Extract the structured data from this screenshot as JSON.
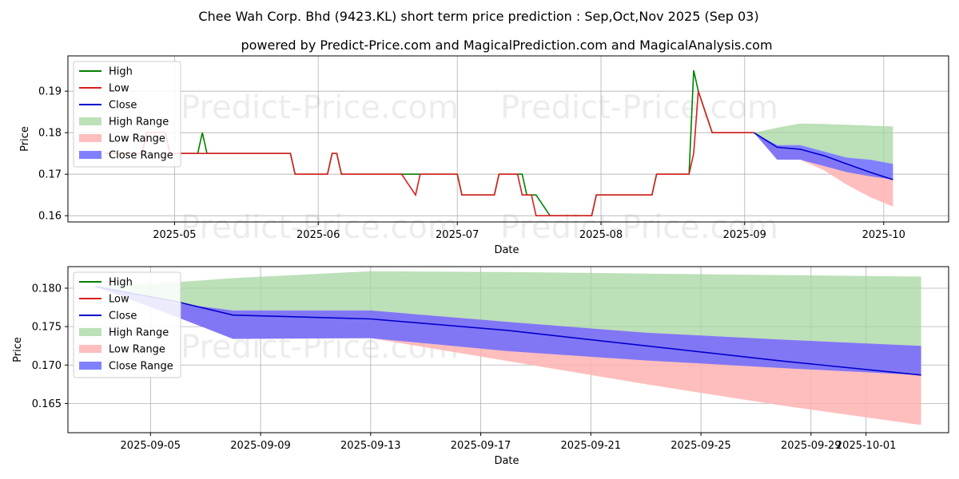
{
  "title": "Chee Wah Corp. Bhd (9423.KL) short term price prediction : Sep,Oct,Nov 2025 (Sep 03)",
  "subtitle": "powered by Predict-Price.com and MagicalPrediction.com and MagicalAnalysis.com",
  "watermark": "Predict-Price.com",
  "colors": {
    "high": "#008000",
    "low": "#d62020",
    "close": "#0000cc",
    "high_range": "#a6d5a0",
    "low_range": "#ffb3b3",
    "close_range": "#6b6bff"
  },
  "chart_data": [
    {
      "type": "line",
      "xlabel": "Date",
      "ylabel": "Price",
      "xlim": [
        "2025-04-08",
        "2025-10-15"
      ],
      "ylim": [
        0.1585,
        0.1985
      ],
      "grid": true,
      "legend_position": "upper-left",
      "x_ticks": [
        "2025-05-01",
        "2025-06-01",
        "2025-07-01",
        "2025-08-01",
        "2025-09-01",
        "2025-10-01"
      ],
      "x_tick_labels": [
        "2025-05",
        "2025-06",
        "2025-07",
        "2025-08",
        "2025-09",
        "2025-10"
      ],
      "y_ticks": [
        0.16,
        0.17,
        0.18,
        0.19
      ],
      "y_tick_labels": [
        "0.16",
        "0.17",
        "0.18",
        "0.19"
      ],
      "legend": [
        "High",
        "Low",
        "Close",
        "High Range",
        "Low Range",
        "Close Range"
      ],
      "series": [
        {
          "name": "High",
          "points": [
            [
              "2025-04-16",
              0.175
            ],
            [
              "2025-04-24",
              0.175
            ],
            [
              "2025-04-25",
              0.18
            ],
            [
              "2025-04-29",
              0.18
            ],
            [
              "2025-04-30",
              0.175
            ],
            [
              "2025-05-06",
              0.175
            ],
            [
              "2025-05-07",
              0.18
            ],
            [
              "2025-05-08",
              0.175
            ],
            [
              "2025-05-26",
              0.175
            ],
            [
              "2025-05-27",
              0.17
            ],
            [
              "2025-06-03",
              0.17
            ],
            [
              "2025-06-04",
              0.175
            ],
            [
              "2025-06-05",
              0.175
            ],
            [
              "2025-06-06",
              0.17
            ],
            [
              "2025-06-21",
              0.17
            ],
            [
              "2025-06-22",
              0.17
            ],
            [
              "2025-06-23",
              0.17
            ],
            [
              "2025-07-01",
              0.17
            ],
            [
              "2025-07-02",
              0.165
            ],
            [
              "2025-07-09",
              0.165
            ],
            [
              "2025-07-10",
              0.17
            ],
            [
              "2025-07-14",
              0.17
            ],
            [
              "2025-07-15",
              0.17
            ],
            [
              "2025-07-16",
              0.165
            ],
            [
              "2025-07-18",
              0.165
            ],
            [
              "2025-07-21",
              0.16
            ],
            [
              "2025-07-30",
              0.16
            ],
            [
              "2025-07-31",
              0.165
            ],
            [
              "2025-08-12",
              0.165
            ],
            [
              "2025-08-13",
              0.17
            ],
            [
              "2025-08-20",
              0.17
            ],
            [
              "2025-08-21",
              0.195
            ],
            [
              "2025-08-22",
              0.19
            ],
            [
              "2025-08-25",
              0.18
            ],
            [
              "2025-09-03",
              0.18
            ]
          ]
        },
        {
          "name": "Low",
          "points": [
            [
              "2025-04-16",
              0.175
            ],
            [
              "2025-04-24",
              0.175
            ],
            [
              "2025-04-25",
              0.18
            ],
            [
              "2025-04-29",
              0.18
            ],
            [
              "2025-04-30",
              0.175
            ],
            [
              "2025-05-26",
              0.175
            ],
            [
              "2025-05-27",
              0.17
            ],
            [
              "2025-06-03",
              0.17
            ],
            [
              "2025-06-04",
              0.175
            ],
            [
              "2025-06-05",
              0.175
            ],
            [
              "2025-06-06",
              0.17
            ],
            [
              "2025-06-19",
              0.17
            ],
            [
              "2025-06-22",
              0.165
            ],
            [
              "2025-06-23",
              0.17
            ],
            [
              "2025-07-01",
              0.17
            ],
            [
              "2025-07-02",
              0.165
            ],
            [
              "2025-07-09",
              0.165
            ],
            [
              "2025-07-10",
              0.17
            ],
            [
              "2025-07-14",
              0.17
            ],
            [
              "2025-07-15",
              0.165
            ],
            [
              "2025-07-17",
              0.165
            ],
            [
              "2025-07-18",
              0.16
            ],
            [
              "2025-07-29",
              0.16
            ],
            [
              "2025-07-30",
              0.16
            ],
            [
              "2025-07-31",
              0.165
            ],
            [
              "2025-08-12",
              0.165
            ],
            [
              "2025-08-13",
              0.17
            ],
            [
              "2025-08-20",
              0.17
            ],
            [
              "2025-08-21",
              0.175
            ],
            [
              "2025-08-22",
              0.19
            ],
            [
              "2025-08-25",
              0.18
            ],
            [
              "2025-09-03",
              0.18
            ]
          ]
        },
        {
          "name": "Close",
          "points": [
            [
              "2025-09-03",
              0.18
            ],
            [
              "2025-09-08",
              0.1765
            ],
            [
              "2025-09-13",
              0.176
            ],
            [
              "2025-09-18",
              0.1745
            ],
            [
              "2025-09-23",
              0.1725
            ],
            [
              "2025-09-28",
              0.1705
            ],
            [
              "2025-10-03",
              0.1687
            ]
          ]
        }
      ],
      "bands": [
        {
          "name": "High Range",
          "points": [
            [
              "2025-09-03",
              0.18,
              0.18
            ],
            [
              "2025-09-08",
              0.1812,
              0.177
            ],
            [
              "2025-09-13",
              0.1822,
              0.177
            ],
            [
              "2025-09-18",
              0.1821,
              0.1755
            ],
            [
              "2025-09-23",
              0.1819,
              0.174
            ],
            [
              "2025-09-28",
              0.1817,
              0.1735
            ],
            [
              "2025-10-03",
              0.1815,
              0.1725
            ]
          ]
        },
        {
          "name": "Low Range",
          "points": [
            [
              "2025-09-03",
              0.18,
              0.18
            ],
            [
              "2025-09-08",
              0.1765,
              0.1735
            ],
            [
              "2025-09-13",
              0.176,
              0.1735
            ],
            [
              "2025-09-18",
              0.1745,
              0.171
            ],
            [
              "2025-09-23",
              0.1725,
              0.1675
            ],
            [
              "2025-09-28",
              0.1705,
              0.1645
            ],
            [
              "2025-10-03",
              0.1687,
              0.1622
            ]
          ]
        },
        {
          "name": "Close Range",
          "points": [
            [
              "2025-09-03",
              0.18,
              0.18
            ],
            [
              "2025-09-08",
              0.177,
              0.1735
            ],
            [
              "2025-09-13",
              0.177,
              0.1735
            ],
            [
              "2025-09-18",
              0.1755,
              0.172
            ],
            [
              "2025-09-23",
              0.174,
              0.1705
            ],
            [
              "2025-09-28",
              0.1735,
              0.1695
            ],
            [
              "2025-10-03",
              0.1725,
              0.1687
            ]
          ]
        }
      ]
    },
    {
      "type": "line",
      "xlabel": "Date",
      "ylabel": "Price",
      "xlim": [
        "2025-09-02",
        "2025-10-04"
      ],
      "ylim": [
        0.1612,
        0.1828
      ],
      "grid": true,
      "legend_position": "upper-left",
      "x_ticks": [
        "2025-09-05",
        "2025-09-09",
        "2025-09-13",
        "2025-09-17",
        "2025-09-21",
        "2025-09-25",
        "2025-09-29",
        "2025-10-01"
      ],
      "x_tick_labels": [
        "2025-09-05",
        "2025-09-09",
        "2025-09-13",
        "2025-09-17",
        "2025-09-21",
        "2025-09-25",
        "2025-09-29",
        "2025-10-01"
      ],
      "y_ticks": [
        0.165,
        0.17,
        0.175,
        0.18
      ],
      "y_tick_labels": [
        "0.165",
        "0.170",
        "0.175",
        "0.180"
      ],
      "legend": [
        "High",
        "Low",
        "Close",
        "High Range",
        "Low Range",
        "Close Range"
      ],
      "series": [
        {
          "name": "Close",
          "points": [
            [
              "2025-09-03",
              0.1802
            ],
            [
              "2025-09-06",
              0.1782
            ],
            [
              "2025-09-08",
              0.1765
            ],
            [
              "2025-09-13",
              0.176
            ],
            [
              "2025-09-18",
              0.1745
            ],
            [
              "2025-09-23",
              0.1725
            ],
            [
              "2025-09-28",
              0.1705
            ],
            [
              "2025-10-03",
              0.1687
            ]
          ]
        }
      ],
      "bands": [
        {
          "name": "High Range",
          "points": [
            [
              "2025-09-03",
              0.1802,
              0.1802
            ],
            [
              "2025-09-06",
              0.1808,
              0.178
            ],
            [
              "2025-09-08",
              0.1813,
              0.1771
            ],
            [
              "2025-09-13",
              0.1822,
              0.1771
            ],
            [
              "2025-09-18",
              0.1821,
              0.1756
            ],
            [
              "2025-09-23",
              0.1819,
              0.1742
            ],
            [
              "2025-09-28",
              0.1817,
              0.1733
            ],
            [
              "2025-10-03",
              0.1815,
              0.1725
            ]
          ]
        },
        {
          "name": "Low Range",
          "points": [
            [
              "2025-09-03",
              0.1802,
              0.1802
            ],
            [
              "2025-09-06",
              0.178,
              0.1762
            ],
            [
              "2025-09-08",
              0.1771,
              0.1734
            ],
            [
              "2025-09-13",
              0.1771,
              0.1735
            ],
            [
              "2025-09-18",
              0.1756,
              0.1705
            ],
            [
              "2025-09-23",
              0.1742,
              0.1675
            ],
            [
              "2025-09-28",
              0.1733,
              0.1647
            ],
            [
              "2025-10-03",
              0.1725,
              0.1622
            ]
          ]
        },
        {
          "name": "Close Range",
          "points": [
            [
              "2025-09-03",
              0.1802,
              0.1802
            ],
            [
              "2025-09-06",
              0.178,
              0.1762
            ],
            [
              "2025-09-08",
              0.1771,
              0.1734
            ],
            [
              "2025-09-13",
              0.1771,
              0.1735
            ],
            [
              "2025-09-18",
              0.1756,
              0.1718
            ],
            [
              "2025-09-23",
              0.1742,
              0.1706
            ],
            [
              "2025-09-28",
              0.1733,
              0.1696
            ],
            [
              "2025-10-03",
              0.1725,
              0.1687
            ]
          ]
        }
      ]
    }
  ]
}
